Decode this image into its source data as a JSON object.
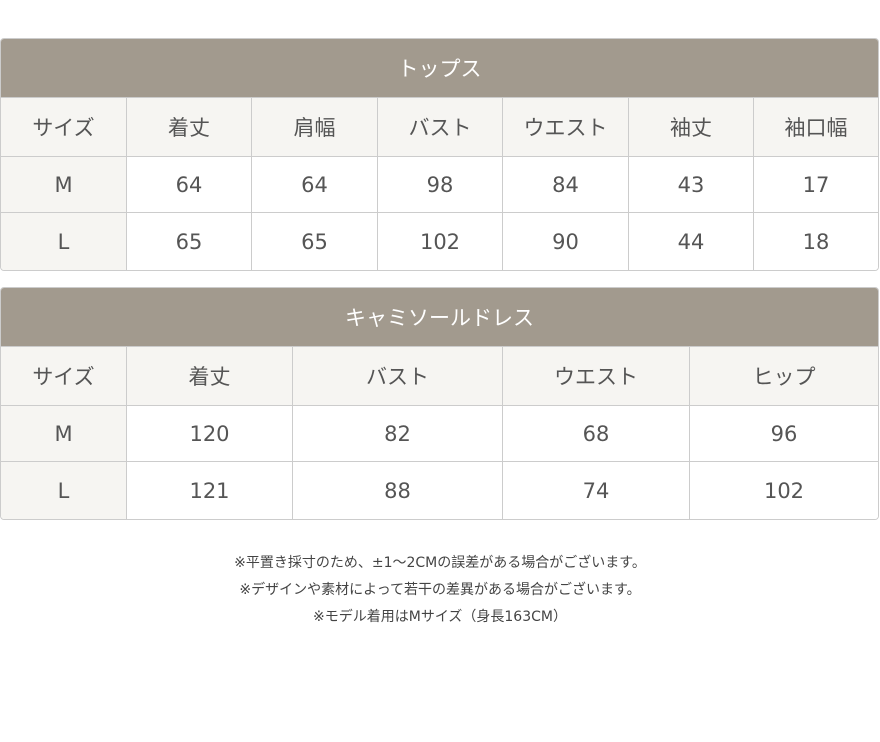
{
  "tops": {
    "title": "トップス",
    "headers": [
      "サイズ",
      "着丈",
      "肩幅",
      "バスト",
      "ウエスト",
      "袖丈",
      "袖口幅"
    ],
    "rows": [
      [
        "M",
        "64",
        "64",
        "98",
        "84",
        "43",
        "17"
      ],
      [
        "L",
        "65",
        "65",
        "102",
        "90",
        "44",
        "18"
      ]
    ]
  },
  "dress": {
    "title": "キャミソールドレス",
    "headers": [
      "サイズ",
      "着丈",
      "バスト",
      "ウエスト",
      "ヒップ"
    ],
    "rows": [
      [
        "M",
        "120",
        "82",
        "68",
        "96"
      ],
      [
        "L",
        "121",
        "88",
        "74",
        "102"
      ]
    ]
  },
  "notes": [
    "※平置き採寸のため、±1〜2CMの誤差がある場合がございます。",
    "※デザインや素材によって若干の差異がある場合がございます。",
    "※モデル着用はMサイズ（身長163CM）"
  ],
  "colors": {
    "header_bar": "#a29a8e",
    "header_cell": "#f6f5f2"
  }
}
